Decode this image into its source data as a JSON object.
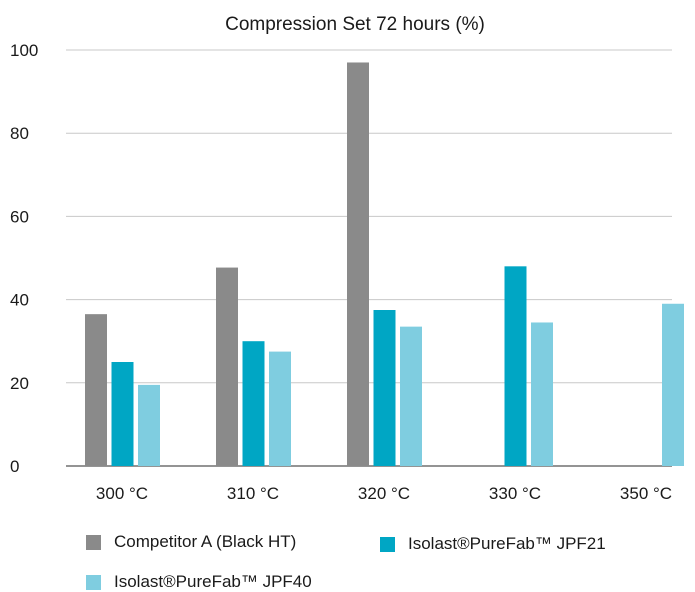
{
  "chart_data": {
    "type": "bar",
    "title": "Compression Set 72 hours (%)",
    "xlabel": "",
    "ylabel": "",
    "ylim": [
      0,
      100
    ],
    "yticks": [
      0,
      20,
      40,
      60,
      80,
      100
    ],
    "grid": "horizontal",
    "legend_position": "bottom",
    "categories": [
      "300 °C",
      "310 °C",
      "320 °C",
      "330 °C",
      "350 °C"
    ],
    "series": [
      {
        "name": "Competitor A (Black HT)",
        "color": "#8a8a8a",
        "values": [
          36.5,
          47.7,
          97,
          null,
          null
        ]
      },
      {
        "name": "Isolast®PureFab™ JPF21",
        "color": "#00a6c4",
        "values": [
          25,
          30,
          37.5,
          48,
          null
        ]
      },
      {
        "name": "Isolast®PureFab™  JPF40",
        "color": "#7fcde0",
        "values": [
          19.5,
          27.5,
          33.5,
          34.5,
          39
        ]
      }
    ]
  }
}
